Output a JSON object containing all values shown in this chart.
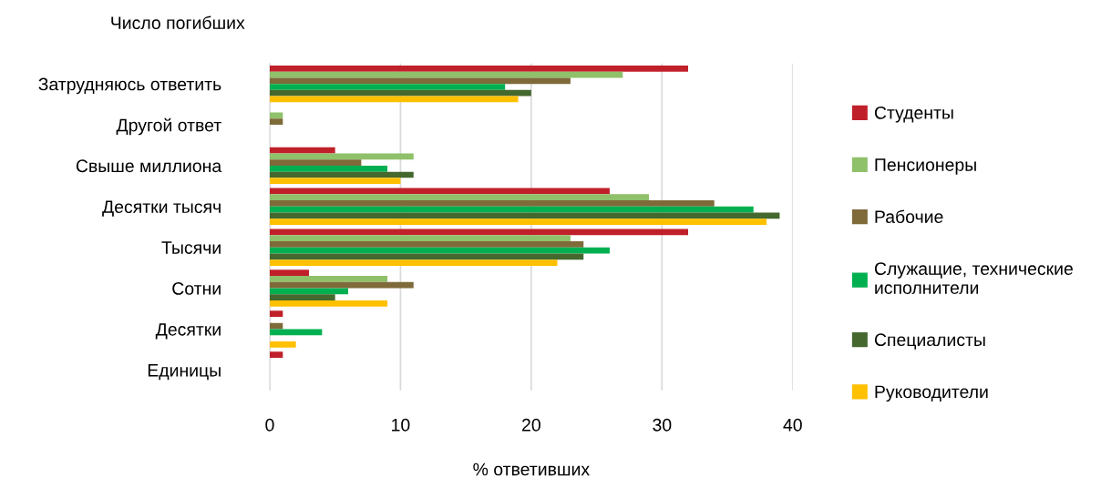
{
  "chart_data": {
    "type": "bar",
    "orientation": "horizontal",
    "ylabel": "Число погибших",
    "xlabel": "% ответивших",
    "categories": [
      "Затрудняюсь ответить",
      "Другой ответ",
      "Свыше миллиона",
      "Десятки тысяч",
      "Тысячи",
      "Сотни",
      "Десятки",
      "Единицы"
    ],
    "series": [
      {
        "name": "Студенты",
        "color": "#c0202a",
        "values": [
          32,
          null,
          5,
          26,
          32,
          3,
          1,
          1
        ]
      },
      {
        "name": "Пенсионеры",
        "color": "#8fc06a",
        "values": [
          27,
          1,
          11,
          29,
          23,
          9,
          null,
          null
        ]
      },
      {
        "name": "Рабочие",
        "color": "#7f6a3a",
        "values": [
          23,
          1,
          7,
          34,
          24,
          11,
          1,
          null
        ]
      },
      {
        "name": "Служащие, технические\nисполнители",
        "color": "#00b050",
        "values": [
          18,
          null,
          9,
          37,
          26,
          6,
          4,
          null
        ]
      },
      {
        "name": "Специалисты",
        "color": "#44682e",
        "values": [
          20,
          null,
          11,
          39,
          24,
          5,
          null,
          null
        ]
      },
      {
        "name": "Руководители",
        "color": "#ffc000",
        "values": [
          19,
          null,
          10,
          38,
          22,
          9,
          2,
          null
        ]
      }
    ],
    "xlim": [
      0,
      40
    ],
    "xticks": [
      0,
      10,
      20,
      30,
      40
    ],
    "grid": "x",
    "legend": "right"
  }
}
